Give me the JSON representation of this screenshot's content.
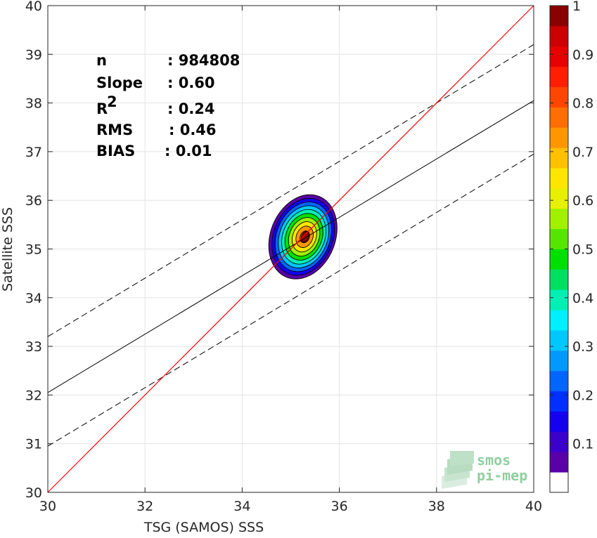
{
  "chart_data": {
    "type": "heatmap",
    "xlabel": "TSG (SAMOS) SSS",
    "ylabel": "Satellite SSS",
    "xlim": [
      30,
      40
    ],
    "ylim": [
      30,
      40
    ],
    "xticks": [
      "30",
      "32",
      "34",
      "36",
      "38",
      "40"
    ],
    "yticks": [
      "30",
      "31",
      "32",
      "33",
      "34",
      "35",
      "36",
      "37",
      "38",
      "39",
      "40"
    ],
    "grid": true,
    "stats": [
      {
        "label": "n",
        "value": ": 984808"
      },
      {
        "label": "Slope",
        "value": ": 0.60"
      },
      {
        "label": "R",
        "sup": "2",
        "value": ": 0.24"
      },
      {
        "label": "RMS",
        "value": ": 0.46"
      },
      {
        "label": "BIAS",
        "value": ": 0.01"
      }
    ],
    "identity_line": {
      "color": "#ff0000",
      "points": [
        [
          30,
          30
        ],
        [
          40,
          40
        ]
      ]
    },
    "regression_line": {
      "color": "#000000",
      "points": [
        [
          30,
          32.05
        ],
        [
          40,
          38.05
        ]
      ]
    },
    "confidence_lines": [
      {
        "color": "#000000",
        "dash": true,
        "points": [
          [
            30,
            33.2
          ],
          [
            40,
            39.2
          ]
        ]
      },
      {
        "color": "#000000",
        "dash": true,
        "points": [
          [
            30,
            30.95
          ],
          [
            40,
            36.95
          ]
        ]
      }
    ],
    "density_center": {
      "x": 35.25,
      "y": 35.25
    },
    "density_levels": [
      0.05,
      0.1,
      0.2,
      0.3,
      0.4,
      0.5,
      0.6,
      0.7,
      0.8,
      0.9
    ],
    "colorbar": {
      "range": [
        0,
        1
      ],
      "ticks": [
        "0.1",
        "0.2",
        "0.3",
        "0.4",
        "0.5",
        "0.6",
        "0.7",
        "0.8",
        "0.9",
        "1"
      ],
      "colors": [
        "#ffffff",
        "#5a00a8",
        "#3c00cc",
        "#1400ee",
        "#0030ff",
        "#0066ff",
        "#0099ff",
        "#00c8ff",
        "#00f0ff",
        "#00f0b4",
        "#00e060",
        "#00e000",
        "#55e600",
        "#a0f000",
        "#e6f000",
        "#ffe600",
        "#ffc000",
        "#ff9600",
        "#ff6e00",
        "#ff4600",
        "#ff1e00",
        "#e60000",
        "#cc0000",
        "#8b0000"
      ]
    }
  },
  "logo": {
    "line1": "smos",
    "line2": "pi-mep"
  }
}
